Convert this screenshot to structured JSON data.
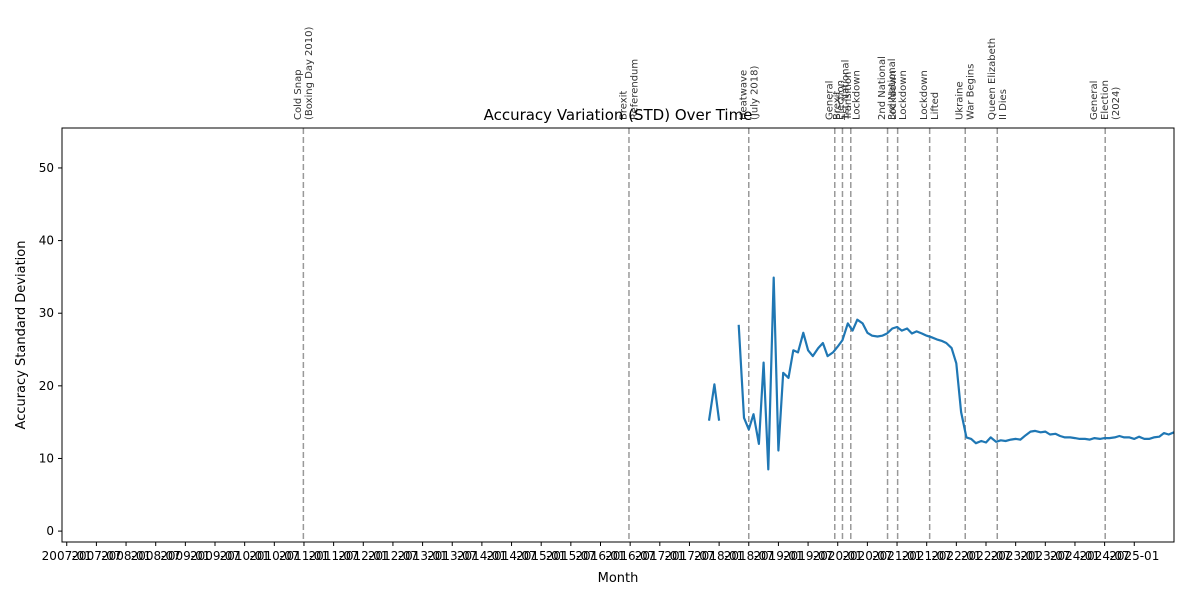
{
  "chart_data": {
    "type": "line",
    "title": "Accuracy Variation (STD) Over Time",
    "xlabel": "Month",
    "ylabel": "Accuracy Standard Deviation",
    "xlim": [
      2006.92,
      2025.67
    ],
    "ylim": [
      -1.5,
      55.5
    ],
    "y_ticks": [
      0,
      10,
      20,
      30,
      40,
      50
    ],
    "x_tick_labels": [
      "2007-01",
      "2007-07",
      "2008-01",
      "2008-07",
      "2009-01",
      "2009-07",
      "2010-01",
      "2010-07",
      "2011-01",
      "2011-07",
      "2012-01",
      "2012-07",
      "2013-01",
      "2013-07",
      "2014-01",
      "2014-07",
      "2015-01",
      "2015-07",
      "2016-01",
      "2016-07",
      "2017-01",
      "2017-07",
      "2018-01",
      "2018-07",
      "2019-01",
      "2019-07",
      "2020-01",
      "2020-07",
      "2021-01",
      "2021-07",
      "2022-01",
      "2022-07",
      "2023-01",
      "2023-07",
      "2024-01",
      "2024-07",
      "2025-01"
    ],
    "grid": false,
    "line_color": "#1f77b4",
    "event_line_color": "#999999",
    "series": [
      {
        "segments": [
          [
            [
              2017.83,
              15.2
            ],
            [
              2017.92,
              20.2
            ],
            [
              2018.0,
              15.2
            ]
          ],
          [
            [
              2018.33,
              28.4
            ],
            [
              2018.42,
              15.6
            ],
            [
              2018.5,
              14.0
            ],
            [
              2018.58,
              16.1
            ],
            [
              2018.67,
              12.0
            ],
            [
              2018.75,
              23.2
            ],
            [
              2018.83,
              8.5
            ],
            [
              2018.92,
              34.9
            ],
            [
              2019.0,
              11.1
            ],
            [
              2019.08,
              21.8
            ],
            [
              2019.17,
              21.1
            ],
            [
              2019.25,
              24.9
            ],
            [
              2019.33,
              24.6
            ],
            [
              2019.42,
              27.3
            ],
            [
              2019.5,
              24.9
            ],
            [
              2019.58,
              24.1
            ],
            [
              2019.67,
              25.2
            ],
            [
              2019.75,
              25.9
            ],
            [
              2019.83,
              24.1
            ],
            [
              2019.92,
              24.6
            ],
            [
              2020.0,
              25.4
            ],
            [
              2020.08,
              26.3
            ],
            [
              2020.17,
              28.6
            ],
            [
              2020.25,
              27.6
            ],
            [
              2020.33,
              29.1
            ],
            [
              2020.42,
              28.6
            ],
            [
              2020.5,
              27.3
            ],
            [
              2020.58,
              26.9
            ],
            [
              2020.67,
              26.8
            ],
            [
              2020.75,
              26.9
            ],
            [
              2020.83,
              27.2
            ],
            [
              2020.92,
              27.9
            ],
            [
              2021.0,
              28.1
            ],
            [
              2021.08,
              27.6
            ],
            [
              2021.17,
              27.9
            ],
            [
              2021.25,
              27.2
            ],
            [
              2021.33,
              27.5
            ],
            [
              2021.42,
              27.2
            ],
            [
              2021.5,
              26.9
            ],
            [
              2021.58,
              26.7
            ],
            [
              2021.67,
              26.4
            ],
            [
              2021.75,
              26.2
            ],
            [
              2021.83,
              25.9
            ],
            [
              2021.92,
              25.2
            ],
            [
              2022.0,
              23.1
            ],
            [
              2022.08,
              16.4
            ],
            [
              2022.17,
              12.9
            ],
            [
              2022.25,
              12.7
            ],
            [
              2022.33,
              12.1
            ],
            [
              2022.42,
              12.4
            ],
            [
              2022.5,
              12.2
            ],
            [
              2022.58,
              12.9
            ],
            [
              2022.67,
              12.3
            ],
            [
              2022.75,
              12.5
            ],
            [
              2022.83,
              12.4
            ],
            [
              2022.92,
              12.6
            ],
            [
              2023.0,
              12.7
            ],
            [
              2023.08,
              12.6
            ],
            [
              2023.17,
              13.2
            ],
            [
              2023.25,
              13.7
            ],
            [
              2023.33,
              13.8
            ],
            [
              2023.42,
              13.6
            ],
            [
              2023.5,
              13.7
            ],
            [
              2023.58,
              13.3
            ],
            [
              2023.67,
              13.4
            ],
            [
              2023.75,
              13.1
            ],
            [
              2023.83,
              12.9
            ],
            [
              2023.92,
              12.9
            ],
            [
              2024.0,
              12.8
            ],
            [
              2024.08,
              12.7
            ],
            [
              2024.17,
              12.7
            ],
            [
              2024.25,
              12.6
            ],
            [
              2024.33,
              12.8
            ],
            [
              2024.42,
              12.7
            ],
            [
              2024.5,
              12.8
            ],
            [
              2024.58,
              12.8
            ],
            [
              2024.67,
              12.9
            ],
            [
              2024.75,
              13.1
            ],
            [
              2024.83,
              12.9
            ],
            [
              2024.92,
              12.9
            ],
            [
              2025.0,
              12.7
            ],
            [
              2025.08,
              13.0
            ],
            [
              2025.17,
              12.7
            ],
            [
              2025.25,
              12.7
            ],
            [
              2025.33,
              12.9
            ],
            [
              2025.42,
              13.0
            ],
            [
              2025.5,
              13.5
            ],
            [
              2025.58,
              13.3
            ],
            [
              2025.67,
              13.6
            ]
          ]
        ]
      }
    ],
    "events": [
      {
        "x": 2010.99,
        "lines": [
          "Cold Snap",
          "(Boxing Day 2010)"
        ]
      },
      {
        "x": 2016.48,
        "lines": [
          "Brexit",
          "Referendum"
        ]
      },
      {
        "x": 2018.5,
        "lines": [
          "Heatwave",
          "(July 2018)"
        ]
      },
      {
        "x": 2019.95,
        "lines": [
          "General",
          "Election"
        ]
      },
      {
        "x": 2020.08,
        "lines": [
          "Brexit",
          "Transition"
        ]
      },
      {
        "x": 2020.22,
        "lines": [
          "1st National",
          "Lockdown"
        ]
      },
      {
        "x": 2020.84,
        "lines": [
          "2nd National",
          "Lockdown"
        ]
      },
      {
        "x": 2021.01,
        "lines": [
          "3rd National",
          "Lockdown"
        ]
      },
      {
        "x": 2021.55,
        "lines": [
          "Lockdown",
          "Lifted"
        ]
      },
      {
        "x": 2022.15,
        "lines": [
          "Ukraine",
          "War Begins"
        ]
      },
      {
        "x": 2022.69,
        "lines": [
          "Queen Elizabeth",
          "II Dies"
        ]
      },
      {
        "x": 2024.51,
        "lines": [
          "General",
          "Election",
          "(2024)"
        ]
      }
    ]
  }
}
